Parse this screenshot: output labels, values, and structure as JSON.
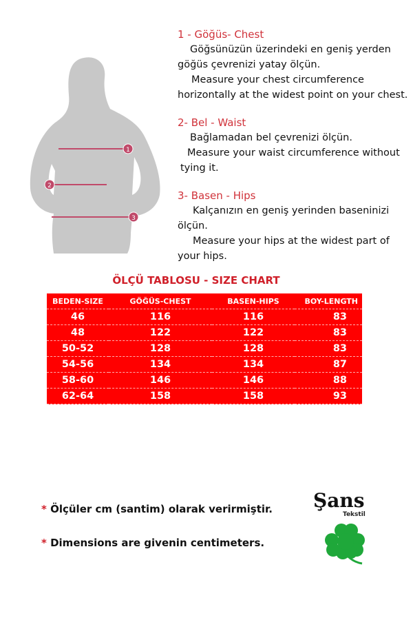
{
  "sections": [
    {
      "heading": "1 - Göğüs- Chest",
      "lines": [
        "Göğsünüzün üzerindeki en geniş yerden",
        "göğüs çevrenizi yatay ölçün.",
        "Measure your chest circumference",
        "horizontally at the widest point on your chest."
      ]
    },
    {
      "heading": "2- Bel - Waist",
      "lines": [
        "Bağlamadan bel çevrenizi ölçün.",
        "Measure your waist circumference without",
        "tying it."
      ]
    },
    {
      "heading": "3- Basen - Hips",
      "lines": [
        "Kalçanızın en geniş yerinden baseninizi",
        "ölçün.",
        "Measure your hips at the widest part of",
        "your hips."
      ]
    }
  ],
  "figure_markers": [
    "1",
    "2",
    "3"
  ],
  "table": {
    "title": "ÖLÇÜ TABLOSU - SIZE CHART",
    "headers": [
      "BEDEN-SIZE",
      "GÖĞÜS-CHEST",
      "BASEN-HIPS",
      "BOY-LENGTH"
    ],
    "rows": [
      [
        "46",
        "116",
        "116",
        "83"
      ],
      [
        "48",
        "122",
        "122",
        "83"
      ],
      [
        "50-52",
        "128",
        "128",
        "83"
      ],
      [
        "54-56",
        "134",
        "134",
        "87"
      ],
      [
        "58-60",
        "146",
        "146",
        "88"
      ],
      [
        "62-64",
        "158",
        "158",
        "93"
      ]
    ],
    "background_color": "#ff0000"
  },
  "notes": [
    {
      "star": "*",
      "text": "Ölçüler  cm (santim) olarak verirmiştir."
    },
    {
      "star": "*",
      "text": "Dimensions are givenin centimeters."
    }
  ],
  "logo": {
    "brand": "Şans",
    "sub": "Tekstil",
    "icon": "four-leaf-clover-icon",
    "color": "#1fa83a"
  },
  "accent_color": "#d0323a"
}
